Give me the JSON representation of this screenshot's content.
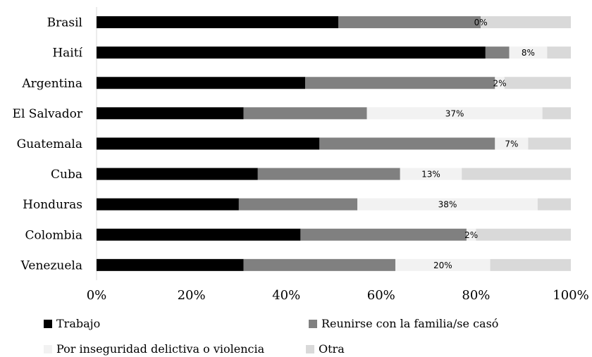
{
  "chart_data": {
    "type": "bar",
    "orientation": "horizontal",
    "stacked": true,
    "categories": [
      "Brasil",
      "Haití",
      "Argentina",
      "El Salvador",
      "Guatemala",
      "Cuba",
      "Honduras",
      "Colombia",
      "Venezuela"
    ],
    "series": [
      {
        "name": "Trabajo",
        "color": "#000000",
        "values": [
          51,
          82,
          44,
          31,
          47,
          34,
          30,
          43,
          31
        ]
      },
      {
        "name": "Reunirse con la familia/se casó",
        "color": "#808080",
        "values": [
          30,
          5,
          40,
          26,
          37,
          30,
          25,
          35,
          32
        ]
      },
      {
        "name": "Por inseguridad delictiva o violencia",
        "color": "#f2f2f2",
        "values": [
          0,
          8,
          2,
          37,
          7,
          13,
          38,
          2,
          20
        ]
      },
      {
        "name": "Otra",
        "color": "#d9d9d9",
        "values": [
          19,
          5,
          14,
          6,
          9,
          23,
          7,
          20,
          17
        ]
      }
    ],
    "data_labels": [
      "0%",
      "8%",
      "2%",
      "37%",
      "7%",
      "13%",
      "38%",
      "2%",
      "20%"
    ],
    "xlim": [
      0,
      100
    ],
    "xticks": [
      "0%",
      "20%",
      "40%",
      "60%",
      "80%",
      "100%"
    ],
    "title": "",
    "xlabel": "",
    "ylabel": "",
    "grid": false,
    "legend_position": "bottom"
  }
}
